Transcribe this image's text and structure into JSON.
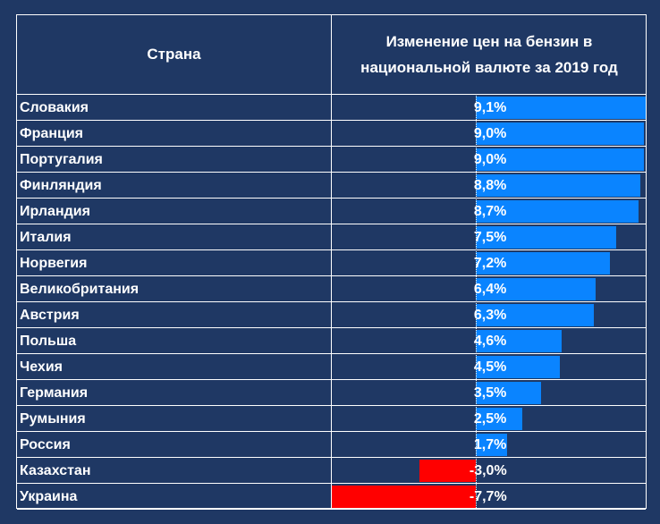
{
  "table": {
    "header_country": "Страна",
    "header_value": "Изменение цен на бензин в\nнациональной валюте за 2019 год"
  },
  "chart_data": {
    "type": "bar",
    "orientation": "horizontal",
    "categories": [
      "Словакия",
      "Франция",
      "Португалия",
      "Финляндия",
      "Ирландия",
      "Италия",
      "Норвегия",
      "Великобритания",
      "Австрия",
      "Польша",
      "Чехия",
      "Германия",
      "Румыния",
      "Россия",
      "Казахстан",
      "Украина"
    ],
    "values": [
      9.1,
      9.0,
      9.0,
      8.8,
      8.7,
      7.5,
      7.2,
      6.4,
      6.3,
      4.6,
      4.5,
      3.5,
      2.5,
      1.7,
      -3.0,
      -7.7
    ],
    "value_labels": [
      "9,1%",
      "9,0%",
      "9,0%",
      "8,8%",
      "8,7%",
      "7,5%",
      "7,2%",
      "6,4%",
      "6,3%",
      "4,6%",
      "4,5%",
      "3,5%",
      "2,5%",
      "1,7%",
      "-3,0%",
      "-7,7%"
    ],
    "xlim": [
      -7.7,
      9.1
    ],
    "colors": {
      "positive": "#0a84ff",
      "negative": "#ff0000"
    }
  }
}
